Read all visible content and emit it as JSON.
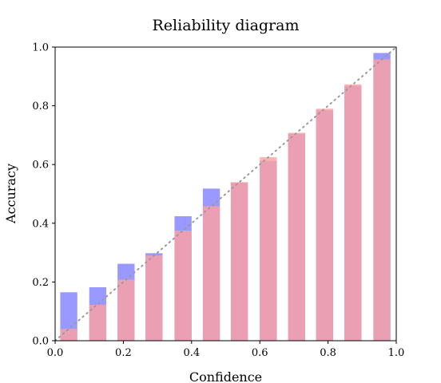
{
  "chart_data": {
    "type": "bar",
    "title": "Reliability diagram",
    "xlabel": "Confidence",
    "ylabel": "Accuracy",
    "xlim": [
      0.0,
      1.0
    ],
    "ylim": [
      0.0,
      1.0
    ],
    "xticks": [
      "0.0",
      "0.2",
      "0.4",
      "0.6",
      "0.8",
      "1.0"
    ],
    "yticks": [
      "0.0",
      "0.2",
      "0.4",
      "0.6",
      "0.8",
      "1.0"
    ],
    "grid": false,
    "legend": null,
    "x": [
      0.04,
      0.125,
      0.208,
      0.29,
      0.375,
      0.458,
      0.54,
      0.625,
      0.708,
      0.79,
      0.873,
      0.958
    ],
    "bar_width": 0.05,
    "series": [
      {
        "color": "#8080ff",
        "values": [
          0.165,
          0.182,
          0.262,
          0.298,
          0.424,
          0.518,
          0.538,
          0.612,
          0.705,
          0.785,
          0.868,
          0.98
        ]
      },
      {
        "color": "#ffa0a0",
        "values": [
          0.04,
          0.122,
          0.208,
          0.29,
          0.375,
          0.458,
          0.54,
          0.625,
          0.708,
          0.79,
          0.873,
          0.958
        ]
      }
    ],
    "reference_line": {
      "from": [
        0.0,
        0.0
      ],
      "to": [
        1.0,
        1.0
      ],
      "style": "dotted",
      "color": "#9a9a9a"
    }
  }
}
